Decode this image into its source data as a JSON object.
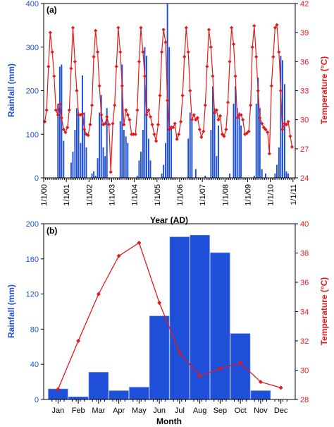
{
  "colors": {
    "rain": "#1f4fd8",
    "temp": "#e31a1c",
    "axis": "#000000"
  },
  "chart_data": [
    {
      "type": "bar",
      "panel_label": "(a)",
      "xlabel": "Year (AD)",
      "ylabel": "Rainfall (mm)",
      "y2label": "Temperature (°C)",
      "ylim": [
        0,
        400
      ],
      "y2lim": [
        24,
        42
      ],
      "yticks": [
        0,
        100,
        200,
        300,
        400
      ],
      "y2ticks": [
        24,
        27,
        30,
        33,
        36,
        39,
        42
      ],
      "xlim": [
        2000,
        2011.1
      ],
      "xticks": [
        2000,
        2001,
        2002,
        2003,
        2004,
        2005,
        2006,
        2007,
        2008,
        2009,
        2010,
        2011
      ],
      "xticklabels": [
        "1/1/00",
        "1/1/01",
        "1/1/02",
        "1/1/03",
        "1/1/04",
        "1/1/05",
        "1/1/06",
        "1/1/07",
        "1/1/08",
        "1/1/09",
        "1/1/10",
        "1/1/11"
      ],
      "series": [
        {
          "kind": "bar",
          "axis": "left",
          "x": [
            2000.05,
            2000.13,
            2000.21,
            2000.29,
            2000.38,
            2000.46,
            2000.54,
            2000.63,
            2000.71,
            2000.79,
            2000.88,
            2000.96,
            2001.05,
            2001.13,
            2001.21,
            2001.29,
            2001.38,
            2001.46,
            2001.54,
            2001.63,
            2001.71,
            2001.79,
            2001.88,
            2001.96,
            2002.05,
            2002.13,
            2002.21,
            2002.29,
            2002.38,
            2002.46,
            2002.54,
            2002.63,
            2002.71,
            2002.79,
            2002.88,
            2002.96,
            2003.05,
            2003.13,
            2003.21,
            2003.29,
            2003.38,
            2003.46,
            2003.54,
            2003.63,
            2003.71,
            2003.79,
            2003.88,
            2003.96,
            2004.05,
            2004.13,
            2004.21,
            2004.29,
            2004.38,
            2004.46,
            2004.54,
            2004.63,
            2004.71,
            2004.79,
            2004.88,
            2004.96,
            2005.05,
            2005.13,
            2005.21,
            2005.29,
            2005.38,
            2005.46,
            2005.54,
            2005.63,
            2005.71,
            2005.79,
            2005.88,
            2005.96,
            2006.05,
            2006.13,
            2006.21,
            2006.29,
            2006.38,
            2006.46,
            2006.54,
            2006.63,
            2006.71,
            2006.79,
            2006.88,
            2006.96,
            2007.05,
            2007.13,
            2007.21,
            2007.29,
            2007.38,
            2007.46,
            2007.54,
            2007.63,
            2007.71,
            2007.79,
            2007.88,
            2007.96,
            2008.05,
            2008.13,
            2008.21,
            2008.29,
            2008.38,
            2008.46,
            2008.54,
            2008.63,
            2008.71,
            2008.79,
            2008.88,
            2008.96,
            2009.05,
            2009.13,
            2009.21,
            2009.29,
            2009.38,
            2009.46,
            2009.54,
            2009.63,
            2009.71,
            2009.79,
            2009.88,
            2009.96,
            2010.05,
            2010.13,
            2010.21,
            2010.29,
            2010.38,
            2010.46,
            2010.54,
            2010.63,
            2010.71,
            2010.79,
            2010.88,
            2010.96
          ],
          "values": [
            0,
            0,
            0,
            0,
            0,
            0,
            0,
            170,
            255,
            260,
            85,
            0,
            0,
            0,
            35,
            60,
            110,
            160,
            150,
            80,
            235,
            150,
            70,
            0,
            0,
            10,
            15,
            5,
            45,
            150,
            190,
            70,
            50,
            160,
            0,
            0,
            0,
            0,
            0,
            0,
            130,
            260,
            110,
            95,
            80,
            0,
            0,
            0,
            0,
            5,
            40,
            60,
            110,
            300,
            280,
            90,
            40,
            0,
            0,
            0,
            0,
            0,
            10,
            30,
            80,
            400,
            300,
            120,
            0,
            0,
            0,
            0,
            0,
            0,
            0,
            0,
            90,
            150,
            130,
            0,
            20,
            0,
            0,
            0,
            0,
            5,
            0,
            0,
            110,
            210,
            160,
            50,
            120,
            0,
            0,
            0,
            0,
            0,
            10,
            0,
            170,
            210,
            160,
            150,
            120,
            0,
            0,
            0,
            0,
            0,
            0,
            5,
            170,
            230,
            160,
            20,
            0,
            10,
            0,
            0,
            0,
            0,
            10,
            30,
            70,
            280,
            270,
            215,
            15,
            10,
            0,
            0
          ]
        },
        {
          "kind": "line",
          "axis": "right",
          "name": "",
          "x": [
            2000.05,
            2000.13,
            2000.21,
            2000.29,
            2000.38,
            2000.46,
            2000.54,
            2000.63,
            2000.71,
            2000.79,
            2000.88,
            2000.96,
            2001.05,
            2001.13,
            2001.21,
            2001.29,
            2001.38,
            2001.46,
            2001.54,
            2001.63,
            2001.71,
            2001.79,
            2001.88,
            2001.96,
            2002.05,
            2002.13,
            2002.21,
            2002.29,
            2002.38,
            2002.46,
            2002.54,
            2002.63,
            2002.71,
            2002.79,
            2002.88,
            2002.96,
            2003.05,
            2003.13,
            2003.21,
            2003.29,
            2003.38,
            2003.46,
            2003.54,
            2003.63,
            2003.71,
            2003.79,
            2003.88,
            2003.96,
            2004.05,
            2004.13,
            2004.21,
            2004.29,
            2004.38,
            2004.46,
            2004.54,
            2004.63,
            2004.71,
            2004.79,
            2004.88,
            2004.96,
            2005.05,
            2005.13,
            2005.21,
            2005.29,
            2005.38,
            2005.46,
            2005.54,
            2005.63,
            2005.71,
            2005.79,
            2005.88,
            2005.96,
            2006.05,
            2006.13,
            2006.21,
            2006.29,
            2006.38,
            2006.46,
            2006.54,
            2006.63,
            2006.71,
            2006.79,
            2006.88,
            2006.96,
            2007.05,
            2007.13,
            2007.21,
            2007.29,
            2007.38,
            2007.46,
            2007.54,
            2007.63,
            2007.71,
            2007.79,
            2007.88,
            2007.96,
            2008.05,
            2008.13,
            2008.21,
            2008.29,
            2008.38,
            2008.46,
            2008.54,
            2008.63,
            2008.71,
            2008.79,
            2008.88,
            2008.96,
            2009.05,
            2009.13,
            2009.21,
            2009.29,
            2009.38,
            2009.46,
            2009.54,
            2009.63,
            2009.71,
            2009.79,
            2009.88,
            2009.96,
            2010.05,
            2010.13,
            2010.21,
            2010.29,
            2010.38,
            2010.46,
            2010.54,
            2010.63,
            2010.71,
            2010.79,
            2010.88,
            2010.96
          ],
          "values": [
            29.8,
            31.0,
            35.5,
            39.0,
            37.0,
            34.5,
            31.0,
            30.5,
            31.6,
            30.2,
            29.0,
            28.7,
            29.2,
            31.0,
            35.3,
            39.5,
            36.0,
            33.0,
            30.5,
            30.5,
            30.6,
            29.0,
            28.5,
            28.4,
            29.5,
            31.5,
            36.5,
            39.2,
            37.0,
            33.5,
            30.5,
            29.5,
            29.6,
            30.3,
            29.5,
            24.6,
            29.6,
            31.5,
            35.5,
            39.5,
            37.0,
            33.5,
            29.5,
            31.0,
            30.5,
            30.0,
            28.5,
            28.5,
            28.5,
            31.0,
            36.0,
            39.5,
            37.0,
            34.5,
            30.5,
            31.0,
            30.3,
            29.5,
            28.5,
            27.8,
            29.5,
            32.5,
            37.0,
            39.3,
            38.0,
            32.0,
            29.0,
            29.2,
            29.2,
            29.6,
            28.0,
            28.5,
            29.8,
            32.5,
            36.5,
            39.5,
            37.0,
            33.0,
            30.0,
            30.5,
            30.0,
            30.2,
            29.0,
            28.2,
            28.8,
            31.5,
            35.5,
            39.3,
            37.5,
            34.5,
            30.7,
            31.0,
            30.0,
            30.4,
            28.5,
            28.3,
            29.0,
            31.8,
            36.0,
            39.5,
            37.8,
            34.5,
            30.2,
            30.5,
            30.5,
            30.0,
            28.5,
            28.6,
            28.8,
            31.5,
            37.5,
            39.7,
            36.5,
            33.0,
            30.2,
            29.6,
            29.2,
            29.0,
            28.7,
            26.5,
            33.5,
            36.5,
            39.5,
            39.8,
            37.0,
            33.0,
            29.0,
            29.6,
            29.5,
            29.8,
            28.3,
            27.2
          ]
        }
      ]
    },
    {
      "type": "bar",
      "panel_label": "(b)",
      "xlabel": "Month",
      "ylabel": "Rainfall (mm)",
      "y2label": "Temperature (°C)",
      "categories": [
        "Jan",
        "Feb",
        "Mar",
        "Apr",
        "May",
        "Jun",
        "Jul",
        "Aug",
        "Sep",
        "Oct",
        "Nov",
        "Dec"
      ],
      "ylim": [
        0,
        200
      ],
      "y2lim": [
        28,
        40
      ],
      "yticks": [
        0,
        40,
        80,
        120,
        160,
        200
      ],
      "y2ticks": [
        28,
        30,
        32,
        34,
        36,
        38,
        40
      ],
      "series": [
        {
          "kind": "bar",
          "axis": "left",
          "values": [
            12,
            3,
            31,
            10,
            14,
            95,
            185,
            187,
            167,
            75,
            10,
            0
          ]
        },
        {
          "kind": "line",
          "axis": "right",
          "values": [
            28.7,
            32.0,
            35.2,
            37.8,
            38.7,
            34.6,
            31.2,
            29.6,
            30.1,
            30.5,
            29.2,
            28.8
          ]
        }
      ]
    }
  ]
}
